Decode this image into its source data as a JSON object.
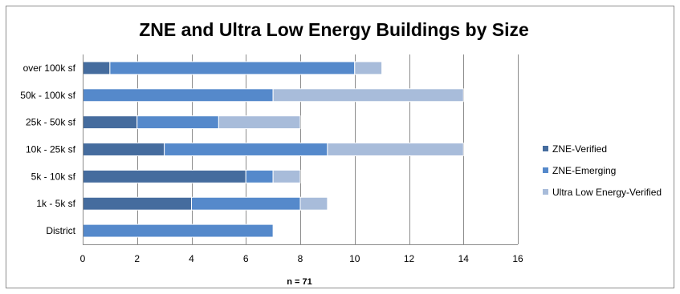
{
  "chart_data": {
    "type": "bar",
    "orientation": "horizontal",
    "stacked": true,
    "title": "ZNE and Ultra Low Energy Buildings by Size",
    "xlabel": "n = 71",
    "ylabel": "",
    "xlim": [
      0,
      16
    ],
    "x_ticks": [
      0,
      2,
      4,
      6,
      8,
      10,
      12,
      14,
      16
    ],
    "grid": true,
    "legend_position": "right",
    "categories": [
      "over 100k sf",
      "50k - 100k sf",
      "25k - 50k sf",
      "10k - 25k sf",
      "5k - 10k sf",
      "1k - 5k sf",
      "District"
    ],
    "series": [
      {
        "name": "ZNE-Verified",
        "color": "#456c9e",
        "values": [
          1,
          0,
          2,
          3,
          6,
          4,
          0
        ]
      },
      {
        "name": "ZNE-Emerging",
        "color": "#5589cb",
        "values": [
          9,
          7,
          3,
          6,
          1,
          4,
          7
        ]
      },
      {
        "name": "Ultra Low Energy-Verified",
        "color": "#a8bcda",
        "values": [
          1,
          7,
          3,
          5,
          1,
          1,
          0
        ]
      }
    ]
  }
}
